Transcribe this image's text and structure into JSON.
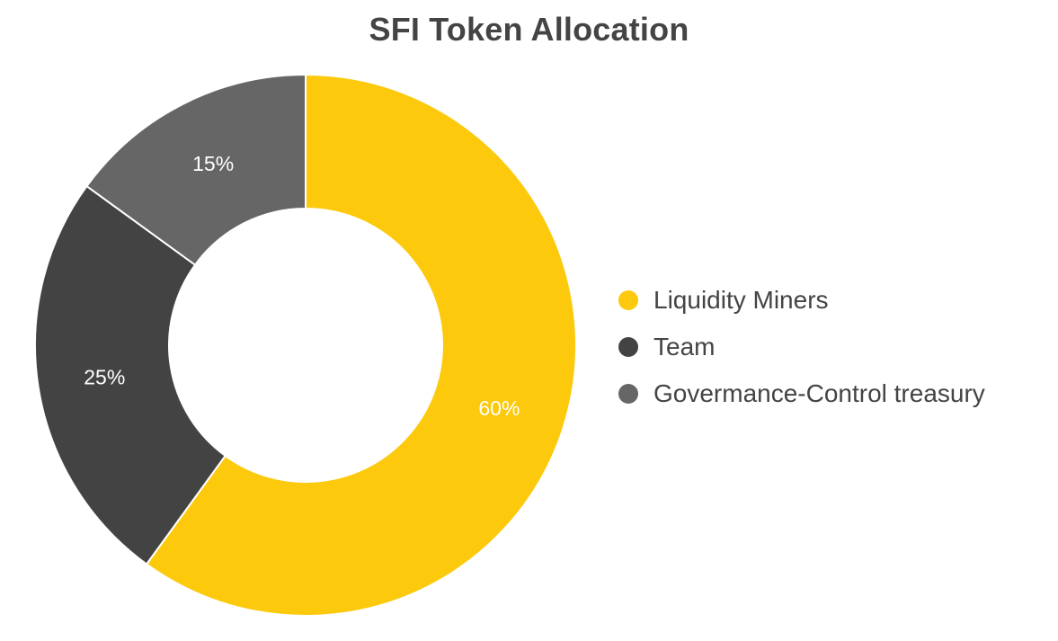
{
  "chart_data": {
    "type": "pie",
    "title": "SFI Token Allocation",
    "categories": [
      "Liquidity Miners",
      "Team",
      "Govermance-Control treasury"
    ],
    "values": [
      60,
      25,
      15
    ],
    "data_labels": [
      "60%",
      "25%",
      "15%"
    ],
    "colors": [
      "#FCC90C",
      "#434343",
      "#666666"
    ],
    "donut": true,
    "start_angle": "top",
    "direction": "clockwise",
    "legend": {
      "position": "right",
      "entries": [
        "Liquidity Miners",
        "Team",
        "Govermance-Control treasury"
      ]
    }
  }
}
